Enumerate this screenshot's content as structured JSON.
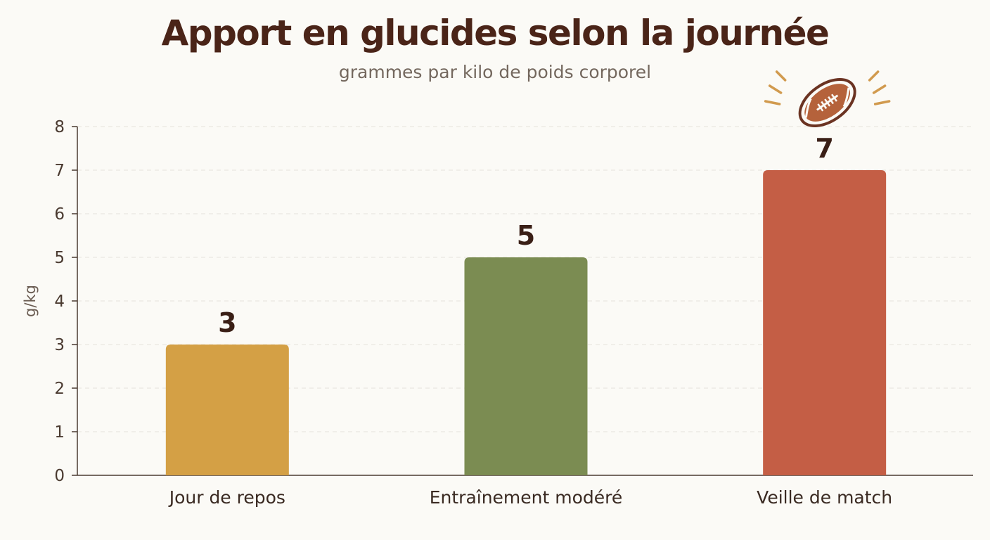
{
  "chart_data": {
    "type": "bar",
    "title": "Apport en glucides selon la journée",
    "subtitle": "grammes par kilo de poids corporel",
    "ylabel": "g/kg",
    "xlabel": "",
    "categories": [
      "Jour de repos",
      "Entraînement modéré",
      "Veille de match"
    ],
    "values": [
      3,
      5,
      7
    ],
    "value_labels": [
      "3",
      "5",
      "7"
    ],
    "bar_colors": [
      "#d4a045",
      "#7b8c52",
      "#c45e45"
    ],
    "ylim": [
      0,
      8
    ],
    "yticks": [
      "0",
      "1",
      "2",
      "3",
      "4",
      "5",
      "6",
      "7",
      "8"
    ],
    "grid": true,
    "grid_style": "dashed",
    "annotation_icon": "football-icon",
    "annotation_target": "Veille de match"
  },
  "colors": {
    "title": "#4a2418",
    "subtitle": "#74685e",
    "axis": "#4a3a30",
    "grid": "#e6e2dc",
    "value_label": "#3a1f16",
    "icon": "#6b3322",
    "spark": "#d19a4e"
  }
}
